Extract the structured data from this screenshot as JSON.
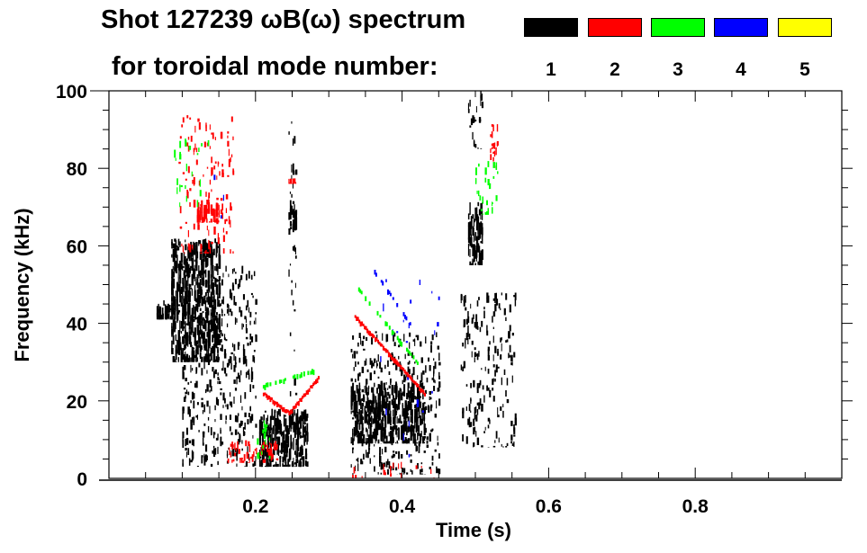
{
  "chart_data": {
    "type": "heatmap",
    "title_line1": "Shot 127239 ωB(ω) spectrum",
    "title_line2": "for toroidal mode number:",
    "xlabel": "Time (s)",
    "ylabel": "Frequency (kHz)",
    "xlim": [
      0,
      1.0
    ],
    "ylim": [
      0,
      100
    ],
    "xticks": [
      0.2,
      0.4,
      0.6,
      0.8
    ],
    "xtick_labels": [
      "0.2",
      "0.4",
      "0.6",
      "0.8"
    ],
    "yticks": [
      0,
      20,
      40,
      60,
      80,
      100
    ],
    "ytick_labels": [
      "0",
      "20",
      "40",
      "60",
      "80",
      "100"
    ],
    "legend": [
      {
        "label": "1",
        "color": "#000000"
      },
      {
        "label": "2",
        "color": "#ff0000"
      },
      {
        "label": "3",
        "color": "#00ff00"
      },
      {
        "label": "4",
        "color": "#0000ff"
      },
      {
        "label": "5",
        "color": "#ffff00"
      }
    ],
    "regions": [
      {
        "mode": 1,
        "t": [
          0.065,
          0.088
        ],
        "f": [
          41,
          46
        ],
        "density": 0.9
      },
      {
        "mode": 1,
        "t": [
          0.085,
          0.15
        ],
        "f": [
          30,
          62
        ],
        "density": 0.8
      },
      {
        "mode": 1,
        "t": [
          0.1,
          0.2
        ],
        "f": [
          3,
          55
        ],
        "density": 0.25
      },
      {
        "mode": 1,
        "t": [
          0.205,
          0.27
        ],
        "f": [
          3,
          18
        ],
        "density": 0.85
      },
      {
        "mode": 1,
        "t": [
          0.245,
          0.256
        ],
        "f": [
          64,
          72
        ],
        "density": 0.8
      },
      {
        "mode": 1,
        "t": [
          0.245,
          0.256
        ],
        "f": [
          20,
          98
        ],
        "density": 0.1
      },
      {
        "mode": 1,
        "t": [
          0.33,
          0.43
        ],
        "f": [
          9,
          25
        ],
        "density": 0.8
      },
      {
        "mode": 1,
        "t": [
          0.33,
          0.45
        ],
        "f": [
          1,
          38
        ],
        "density": 0.25
      },
      {
        "mode": 1,
        "t": [
          0.49,
          0.51
        ],
        "f": [
          55,
          72
        ],
        "density": 0.7
      },
      {
        "mode": 1,
        "t": [
          0.48,
          0.555
        ],
        "f": [
          8,
          48
        ],
        "density": 0.2
      },
      {
        "mode": 1,
        "t": [
          0.49,
          0.51
        ],
        "f": [
          85,
          100
        ],
        "density": 0.3
      },
      {
        "mode": 2,
        "t": [
          0.12,
          0.15
        ],
        "f": [
          66,
          72
        ],
        "density": 0.7
      },
      {
        "mode": 2,
        "t": [
          0.095,
          0.17
        ],
        "f": [
          58,
          94
        ],
        "density": 0.15
      },
      {
        "mode": 2,
        "t": [
          0.16,
          0.23
        ],
        "f": [
          4,
          10
        ],
        "density": 0.35
      },
      {
        "mode": 2,
        "t": [
          0.245,
          0.256
        ],
        "f": [
          76,
          78
        ],
        "density": 0.8
      },
      {
        "mode": 2,
        "t": [
          0.52,
          0.53
        ],
        "f": [
          80,
          92
        ],
        "density": 0.5
      },
      {
        "mode": 2,
        "t": [
          0.33,
          0.45
        ],
        "f": [
          0,
          5
        ],
        "density": 0.1
      },
      {
        "mode": 3,
        "t": [
          0.085,
          0.14
        ],
        "f": [
          70,
          88
        ],
        "density": 0.08
      },
      {
        "mode": 3,
        "t": [
          0.5,
          0.53
        ],
        "f": [
          68,
          82
        ],
        "density": 0.2
      },
      {
        "mode": 3,
        "t": [
          0.2,
          0.22
        ],
        "f": [
          5,
          15
        ],
        "density": 0.3
      },
      {
        "mode": 4,
        "t": [
          0.13,
          0.17
        ],
        "f": [
          62,
          80
        ],
        "density": 0.03
      },
      {
        "mode": 4,
        "t": [
          0.37,
          0.45
        ],
        "f": [
          3,
          52
        ],
        "density": 0.02
      }
    ],
    "chirps": [
      {
        "mode": 2,
        "t": [
          0.335,
          0.43
        ],
        "f": [
          42,
          22
        ]
      },
      {
        "mode": 2,
        "t": [
          0.21,
          0.245
        ],
        "f": [
          22,
          17
        ]
      },
      {
        "mode": 2,
        "t": [
          0.245,
          0.285
        ],
        "f": [
          17,
          26
        ]
      },
      {
        "mode": 3,
        "t": [
          0.34,
          0.42
        ],
        "f": [
          49,
          30
        ]
      },
      {
        "mode": 3,
        "t": [
          0.21,
          0.28
        ],
        "f": [
          24,
          28
        ]
      },
      {
        "mode": 4,
        "t": [
          0.36,
          0.41
        ],
        "f": [
          54,
          40
        ]
      }
    ]
  }
}
